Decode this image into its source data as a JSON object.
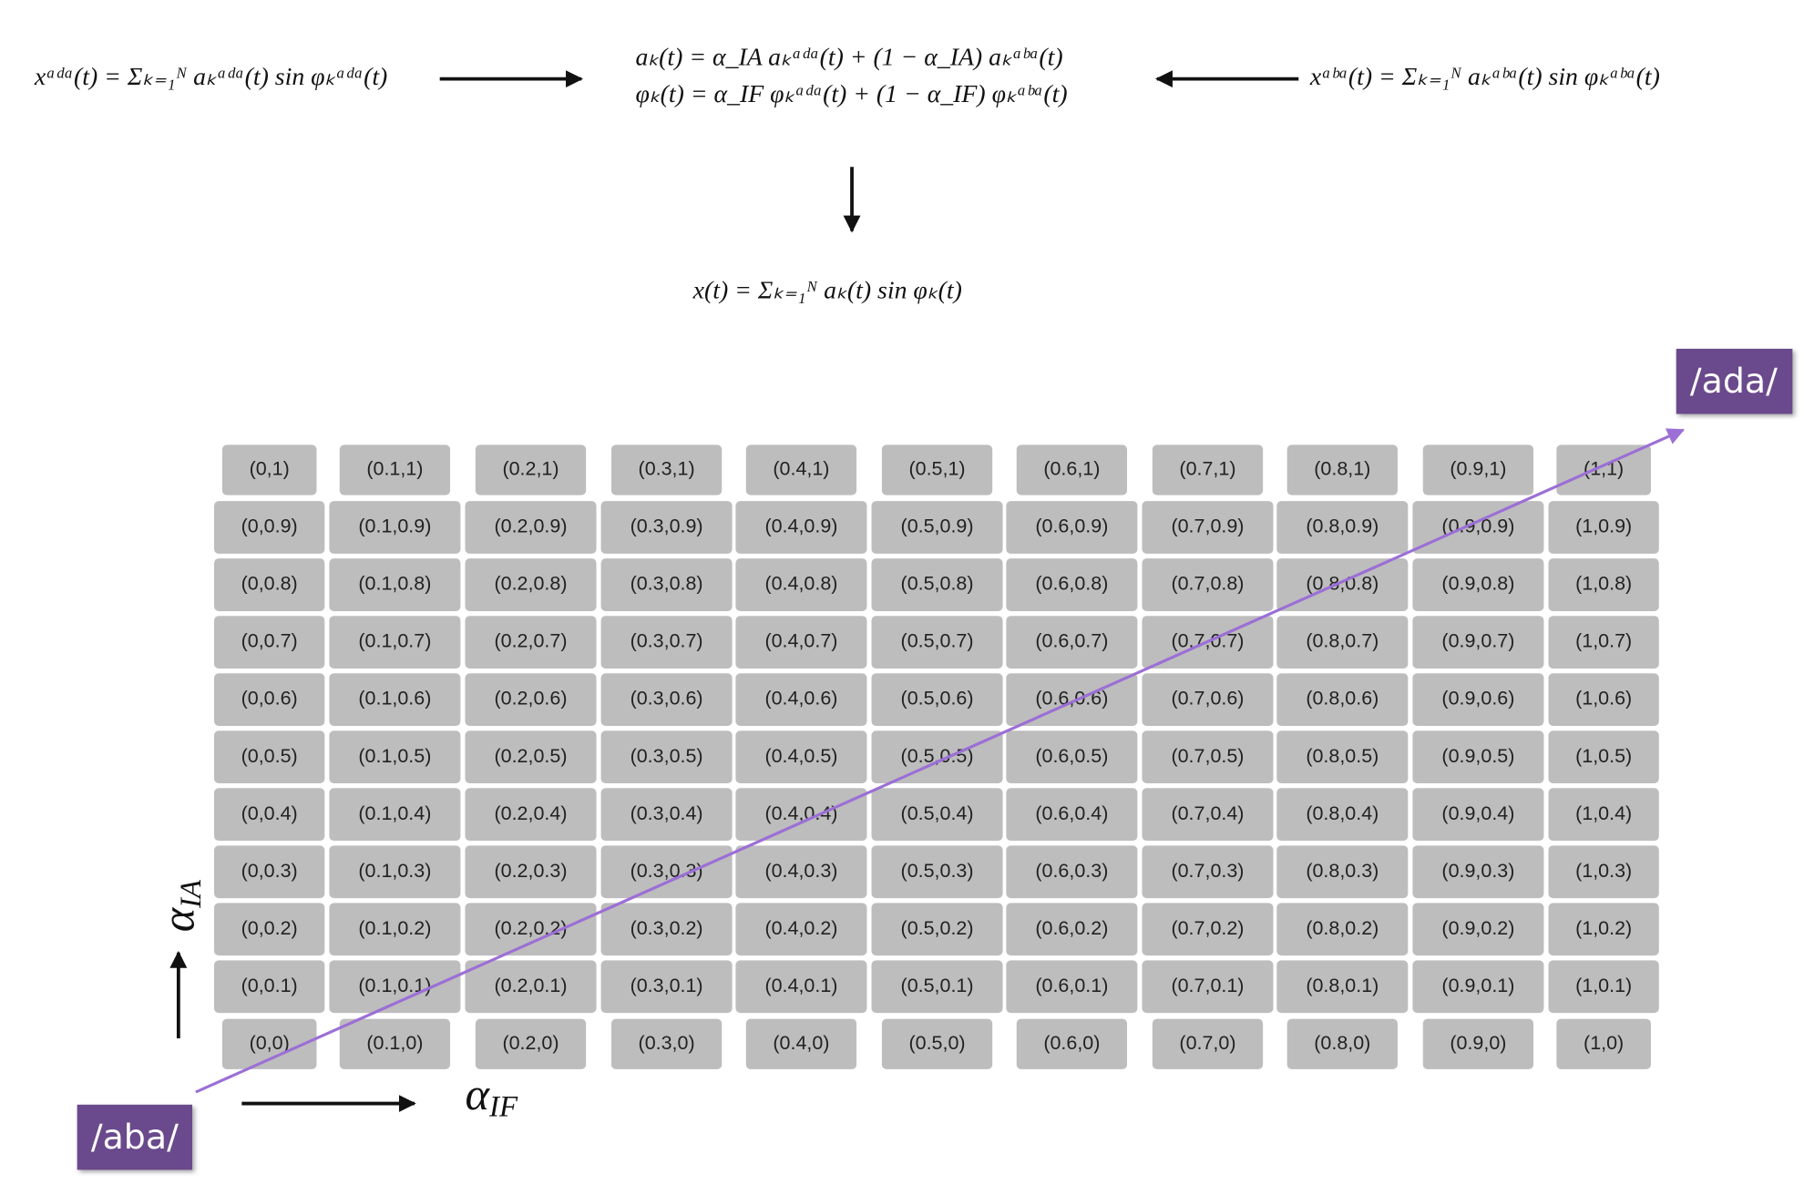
{
  "equations": {
    "ada": "xᵃᵈᵃ(t) = Σₖ₌₁ᴺ aₖᵃᵈᵃ(t) sin φₖᵃᵈᵃ(t)",
    "amplitude": "aₖ(t) = α_IA aₖᵃᵈᵃ(t) + (1 − α_IA) aₖᵃᵇᵃ(t)",
    "phase": "φₖ(t) = α_IF φₖᵃᵈᵃ(t) + (1 − α_IF) φₖᵃᵇᵃ(t)",
    "aba": "xᵃᵇᵃ(t) = Σₖ₌₁ᴺ aₖᵃᵇᵃ(t) sin φₖᵃᵇᵃ(t)",
    "result": "x(t) = Σₖ₌₁ᴺ aₖ(t) sin φₖ(t)"
  },
  "endpoints": {
    "top": "/ada/",
    "bottom": "/aba/"
  },
  "axis_labels": {
    "vertical": {
      "symbol": "α",
      "subscript": "IA"
    },
    "horizontal": {
      "symbol": "α",
      "subscript": "IF"
    }
  },
  "grid": {
    "rows": [
      [
        "(0,1)",
        "(0.1,1)",
        "(0.2,1)",
        "(0.3,1)",
        "(0.4,1)",
        "(0.5,1)",
        "(0.6,1)",
        "(0.7,1)",
        "(0.8,1)",
        "(0.9,1)",
        "(1,1)"
      ],
      [
        "(0,0.9)",
        "(0.1,0.9)",
        "(0.2,0.9)",
        "(0.3,0.9)",
        "(0.4,0.9)",
        "(0.5,0.9)",
        "(0.6,0.9)",
        "(0.7,0.9)",
        "(0.8,0.9)",
        "(0.9,0.9)",
        "(1,0.9)"
      ],
      [
        "(0,0.8)",
        "(0.1,0.8)",
        "(0.2,0.8)",
        "(0.3,0.8)",
        "(0.4,0.8)",
        "(0.5,0.8)",
        "(0.6,0.8)",
        "(0.7,0.8)",
        "(0.8,0.8)",
        "(0.9,0.8)",
        "(1,0.8)"
      ],
      [
        "(0,0.7)",
        "(0.1,0.7)",
        "(0.2,0.7)",
        "(0.3,0.7)",
        "(0.4,0.7)",
        "(0.5,0.7)",
        "(0.6,0.7)",
        "(0.7,0.7)",
        "(0.8,0.7)",
        "(0.9,0.7)",
        "(1,0.7)"
      ],
      [
        "(0,0.6)",
        "(0.1,0.6)",
        "(0.2,0.6)",
        "(0.3,0.6)",
        "(0.4,0.6)",
        "(0.5,0.6)",
        "(0.6,0.6)",
        "(0.7,0.6)",
        "(0.8,0.6)",
        "(0.9,0.6)",
        "(1,0.6)"
      ],
      [
        "(0,0.5)",
        "(0.1,0.5)",
        "(0.2,0.5)",
        "(0.3,0.5)",
        "(0.4,0.5)",
        "(0.5,0.5)",
        "(0.6,0.5)",
        "(0.7,0.5)",
        "(0.8,0.5)",
        "(0.9,0.5)",
        "(1,0.5)"
      ],
      [
        "(0,0.4)",
        "(0.1,0.4)",
        "(0.2,0.4)",
        "(0.3,0.4)",
        "(0.4,0.4)",
        "(0.5,0.4)",
        "(0.6,0.4)",
        "(0.7,0.4)",
        "(0.8,0.4)",
        "(0.9,0.4)",
        "(1,0.4)"
      ],
      [
        "(0,0.3)",
        "(0.1,0.3)",
        "(0.2,0.3)",
        "(0.3,0.3)",
        "(0.4,0.3)",
        "(0.5,0.3)",
        "(0.6,0.3)",
        "(0.7,0.3)",
        "(0.8,0.3)",
        "(0.9,0.3)",
        "(1,0.3)"
      ],
      [
        "(0,0.2)",
        "(0.1,0.2)",
        "(0.2,0.2)",
        "(0.3,0.2)",
        "(0.4,0.2)",
        "(0.5,0.2)",
        "(0.6,0.2)",
        "(0.7,0.2)",
        "(0.8,0.2)",
        "(0.9,0.2)",
        "(1,0.2)"
      ],
      [
        "(0,0.1)",
        "(0.1,0.1)",
        "(0.2,0.1)",
        "(0.3,0.1)",
        "(0.4,0.1)",
        "(0.5,0.1)",
        "(0.6,0.1)",
        "(0.7,0.1)",
        "(0.8,0.1)",
        "(0.9,0.1)",
        "(1,0.1)"
      ],
      [
        "(0,0)",
        "(0.1,0)",
        "(0.2,0)",
        "(0.3,0)",
        "(0.4,0)",
        "(0.5,0)",
        "(0.6,0)",
        "(0.7,0)",
        "(0.8,0)",
        "(0.9,0)",
        "(1,0)"
      ]
    ]
  }
}
